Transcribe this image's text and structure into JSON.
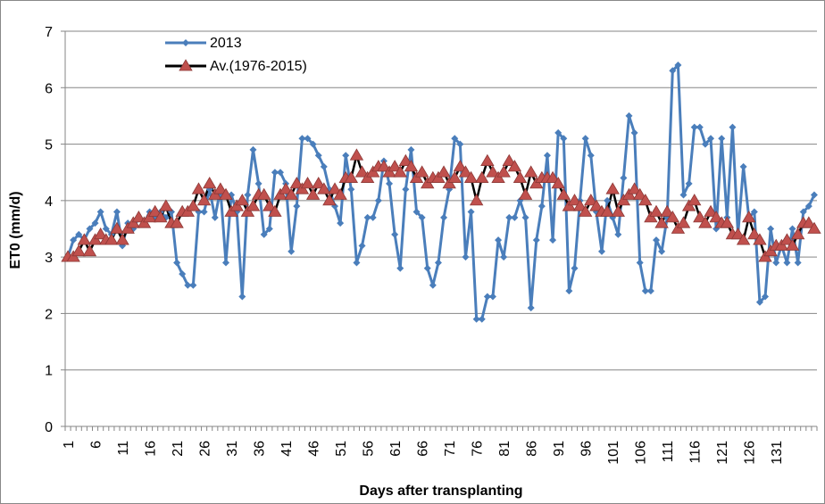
{
  "chart_data": {
    "type": "line",
    "xlabel": "Days after transplanting",
    "ylabel": "ET0 (mm/d)",
    "categories": [
      1,
      null,
      null,
      null,
      null,
      6,
      null,
      null,
      null,
      null,
      11,
      null,
      null,
      null,
      null,
      16,
      null,
      null,
      null,
      null,
      21,
      null,
      null,
      null,
      null,
      26,
      null,
      null,
      null,
      null,
      31,
      null,
      null,
      null,
      null,
      36,
      null,
      null,
      null,
      null,
      41,
      null,
      null,
      null,
      null,
      46,
      null,
      null,
      null,
      null,
      51,
      null,
      null,
      null,
      null,
      56,
      null,
      null,
      null,
      null,
      61,
      null,
      null,
      null,
      null,
      66,
      null,
      null,
      null,
      null,
      71,
      null,
      null,
      null,
      null,
      76,
      null,
      null,
      null,
      null,
      81,
      null,
      null,
      null,
      null,
      86,
      null,
      null,
      null,
      null,
      91,
      null,
      null,
      null,
      null,
      96,
      null,
      null,
      null,
      null,
      101,
      null,
      null,
      null,
      null,
      106,
      null,
      null,
      null,
      null,
      111,
      null,
      null,
      null,
      null,
      116,
      null,
      null,
      null,
      null,
      121,
      null,
      null,
      null,
      null,
      126,
      null,
      null,
      null,
      null,
      131,
      null,
      null,
      null,
      null,
      null,
      null,
      null
    ],
    "ylim": [
      0,
      7
    ],
    "yticks": [
      0,
      1,
      2,
      3,
      4,
      5,
      6,
      7
    ],
    "grid": true,
    "series": [
      {
        "name": "2013",
        "color": "#4a7ebb",
        "line_color": "#4a7ebb",
        "marker": "diamond",
        "values": [
          3.0,
          3.3,
          3.4,
          3.3,
          3.5,
          3.6,
          3.8,
          3.5,
          3.4,
          3.8,
          3.2,
          3.6,
          3.5,
          3.7,
          3.6,
          3.8,
          3.7,
          3.8,
          3.7,
          3.8,
          2.9,
          2.7,
          2.5,
          2.5,
          3.8,
          3.8,
          4.2,
          3.7,
          4.2,
          2.9,
          4.1,
          3.8,
          2.3,
          4.1,
          4.9,
          4.3,
          3.4,
          3.5,
          4.5,
          4.5,
          4.3,
          3.1,
          3.9,
          5.1,
          5.1,
          5.0,
          4.8,
          4.6,
          4.2,
          3.9,
          3.6,
          4.8,
          4.2,
          2.9,
          3.2,
          3.7,
          3.7,
          4.0,
          4.7,
          4.3,
          3.4,
          2.8,
          4.2,
          4.9,
          3.8,
          3.7,
          2.8,
          2.5,
          2.9,
          3.7,
          4.2,
          5.1,
          5.0,
          3.0,
          3.8,
          1.9,
          1.9,
          2.3,
          2.3,
          3.3,
          3.0,
          3.7,
          3.7,
          4.0,
          3.7,
          2.1,
          3.3,
          3.9,
          4.8,
          3.3,
          5.2,
          5.1,
          2.4,
          2.8,
          4.0,
          5.1,
          4.8,
          3.8,
          3.1,
          4.0,
          3.7,
          3.4,
          4.4,
          5.5,
          5.2,
          2.9,
          2.4,
          2.4,
          3.3,
          3.1,
          3.7,
          6.3,
          6.4,
          4.1,
          4.3,
          5.3,
          5.3,
          5.0,
          5.1,
          3.5,
          5.1,
          3.7,
          5.3,
          3.4,
          4.6,
          3.7,
          3.8,
          2.2,
          2.3,
          3.5,
          2.9,
          3.2,
          2.9,
          3.5,
          2.9,
          3.8,
          3.9,
          4.1
        ]
      },
      {
        "name": "Av.(1976-2015)",
        "color": "#c0504d",
        "line_color": "#000000",
        "marker": "triangle",
        "values": [
          3.0,
          3.0,
          3.1,
          3.3,
          3.1,
          3.3,
          3.4,
          3.3,
          3.3,
          3.5,
          3.3,
          3.5,
          3.6,
          3.7,
          3.6,
          3.7,
          3.8,
          3.7,
          3.9,
          3.6,
          3.6,
          3.8,
          3.8,
          3.9,
          4.2,
          4.0,
          4.3,
          4.1,
          4.2,
          4.1,
          3.8,
          3.9,
          4.0,
          3.8,
          3.9,
          4.1,
          4.1,
          3.9,
          3.8,
          4.1,
          4.2,
          4.1,
          4.3,
          4.2,
          4.3,
          4.1,
          4.3,
          4.2,
          4.0,
          4.2,
          4.1,
          4.4,
          4.4,
          4.8,
          4.5,
          4.4,
          4.5,
          4.6,
          4.6,
          4.5,
          4.6,
          4.5,
          4.7,
          4.6,
          4.4,
          4.5,
          4.3,
          4.4,
          4.4,
          4.5,
          4.3,
          4.4,
          4.6,
          4.5,
          4.4,
          4.0,
          4.4,
          4.7,
          4.5,
          4.4,
          4.5,
          4.7,
          4.6,
          4.4,
          4.1,
          4.5,
          4.3,
          4.4,
          4.4,
          4.4,
          4.3,
          4.1,
          3.9,
          4.0,
          3.9,
          3.8,
          4.0,
          3.9,
          3.8,
          3.8,
          4.2,
          3.8,
          4.0,
          4.1,
          4.2,
          4.1,
          4.0,
          3.7,
          3.8,
          3.6,
          3.8,
          3.7,
          3.5,
          3.6,
          3.9,
          4.0,
          3.7,
          3.6,
          3.8,
          3.7,
          3.6,
          3.6,
          3.4,
          3.4,
          3.3,
          3.7,
          3.4,
          3.3,
          3.0,
          3.1,
          3.2,
          3.2,
          3.3,
          3.2,
          3.4,
          3.6,
          3.6,
          3.5
        ]
      }
    ]
  }
}
